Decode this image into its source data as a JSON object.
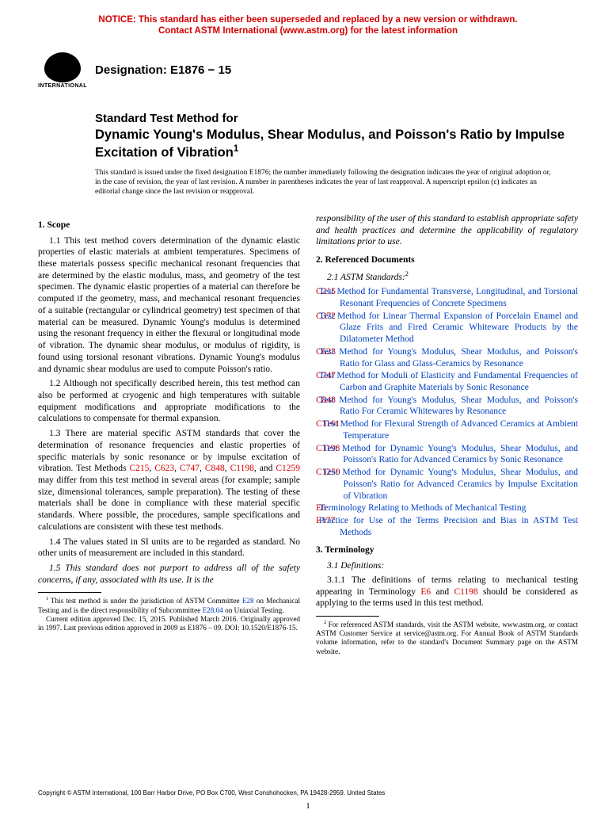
{
  "notice": {
    "line1": "NOTICE: This standard has either been superseded and replaced by a new version or withdrawn.",
    "line2": "Contact ASTM International (www.astm.org) for the latest information"
  },
  "logo_label": "INTERNATIONAL",
  "designation": "Designation: E1876 − 15",
  "title_pre": "Standard Test Method for",
  "title_main": "Dynamic Young's Modulus, Shear Modulus, and Poisson's Ratio by Impulse Excitation of Vibration",
  "title_sup": "1",
  "issuance": "This standard is issued under the fixed designation E1876; the number immediately following the designation indicates the year of original adoption or, in the case of revision, the year of last revision. A number in parentheses indicates the year of last reapproval. A superscript epsilon (ε) indicates an editorial change since the last revision or reapproval.",
  "scope": {
    "heading": "1. Scope",
    "p11": "1.1 This test method covers determination of the dynamic elastic properties of elastic materials at ambient temperatures. Specimens of these materials possess specific mechanical resonant frequencies that are determined by the elastic modulus, mass, and geometry of the test specimen. The dynamic elastic properties of a material can therefore be computed if the geometry, mass, and mechanical resonant frequencies of a suitable (rectangular or cylindrical geometry) test specimen of that material can be measured. Dynamic Young's modulus is determined using the resonant frequency in either the flexural or longitudinal mode of vibration. The dynamic shear modulus, or modulus of rigidity, is found using torsional resonant vibrations. Dynamic Young's modulus and dynamic shear modulus are used to compute Poisson's ratio.",
    "p12": "1.2 Although not specifically described herein, this test method can also be performed at cryogenic and high temperatures with suitable equipment modifications and appropriate modifications to the calculations to compensate for thermal expansion.",
    "p13_a": "1.3 There are material specific ASTM standards that cover the determination of resonance frequencies and elastic properties of specific materials by sonic resonance or by impulse excitation of vibration. Test Methods ",
    "p13_b": " may differ from this test method in several areas (for example; sample size, dimensional tolerances, sample preparation). The testing of these materials shall be done in compliance with these material specific standards. Where possible, the procedures, sample specifications and calculations are consistent with these test methods.",
    "p13_links": [
      "C215",
      "C623",
      "C747",
      "C848",
      "C1198",
      "C1259"
    ],
    "p13_and": ", and ",
    "p14": "1.4 The values stated in SI units are to be regarded as standard. No other units of measurement are included in this standard.",
    "p15": "1.5 This standard does not purport to address all of the safety concerns, if any, associated with its use. It is the"
  },
  "responsibility": "responsibility of the user of this standard to establish appropriate safety and health practices and determine the applicability of regulatory limitations prior to use.",
  "refdocs": {
    "heading": "2. Referenced Documents",
    "subheading": "2.1 ASTM Standards:",
    "sup": "2",
    "items": [
      {
        "code": "C215",
        "title": "Test Method for Fundamental Transverse, Longitudinal, and Torsional Resonant Frequencies of Concrete Specimens"
      },
      {
        "code": "C372",
        "title": "Test Method for Linear Thermal Expansion of Porcelain Enamel and Glaze Frits and Fired Ceramic Whiteware Products by the Dilatometer Method"
      },
      {
        "code": "C623",
        "title": "Test Method for Young's Modulus, Shear Modulus, and Poisson's Ratio for Glass and Glass-Ceramics by Resonance"
      },
      {
        "code": "C747",
        "title": "Test Method for Moduli of Elasticity and Fundamental Frequencies of Carbon and Graphite Materials by Sonic Resonance"
      },
      {
        "code": "C848",
        "title": "Test Method for Young's Modulus, Shear Modulus, and Poisson's Ratio For Ceramic Whitewares by Resonance"
      },
      {
        "code": "C1161",
        "title": "Test Method for Flexural Strength of Advanced Ceramics at Ambient Temperature"
      },
      {
        "code": "C1198",
        "title": "Test Method for Dynamic Young's Modulus, Shear Modulus, and Poisson's Ratio for Advanced Ceramics by Sonic Resonance"
      },
      {
        "code": "C1259",
        "title": "Test Method for Dynamic Young's Modulus, Shear Modulus, and Poisson's Ratio for Advanced Ceramics by Impulse Excitation of Vibration"
      },
      {
        "code": "E6",
        "title": "Terminology Relating to Methods of Mechanical Testing"
      },
      {
        "code": "E177",
        "title": "Practice for Use of the Terms Precision and Bias in ASTM Test Methods"
      }
    ]
  },
  "terminology": {
    "heading": "3. Terminology",
    "subheading": "3.1 Definitions:",
    "p311_a": "3.1.1 The definitions of terms relating to mechanical testing appearing in Terminology ",
    "p311_b": " should be considered as applying to the terms used in this test method.",
    "link1": "E6",
    "and": " and ",
    "link2": "C1198"
  },
  "footnote1": {
    "a": "This test method is under the jurisdiction of ASTM Committee ",
    "link1": "E28",
    "b": " on Mechanical Testing and is the direct responsibility of Subcommittee ",
    "link2": "E28.04",
    "c": " on Uniaxial Testing.",
    "d": "Current edition approved Dec. 15, 2015. Published March 2016. Originally approved in 1997. Last previous edition approved in 2009 as E1876 – 09. DOI: 10.1520/E1876-15."
  },
  "footnote2": "For referenced ASTM standards, visit the ASTM website, www.astm.org, or contact ASTM Customer Service at service@astm.org. For Annual Book of ASTM Standards volume information, refer to the standard's Document Summary page on the ASTM website.",
  "copyright": "Copyright © ASTM International, 100 Barr Harbor Drive, PO Box C700, West Conshohocken, PA 19428-2959. United States",
  "pagenum": "1",
  "colors": {
    "notice_red": "#d40000",
    "link_blue": "#0040c4",
    "text": "#000000",
    "background": "#ffffff"
  }
}
